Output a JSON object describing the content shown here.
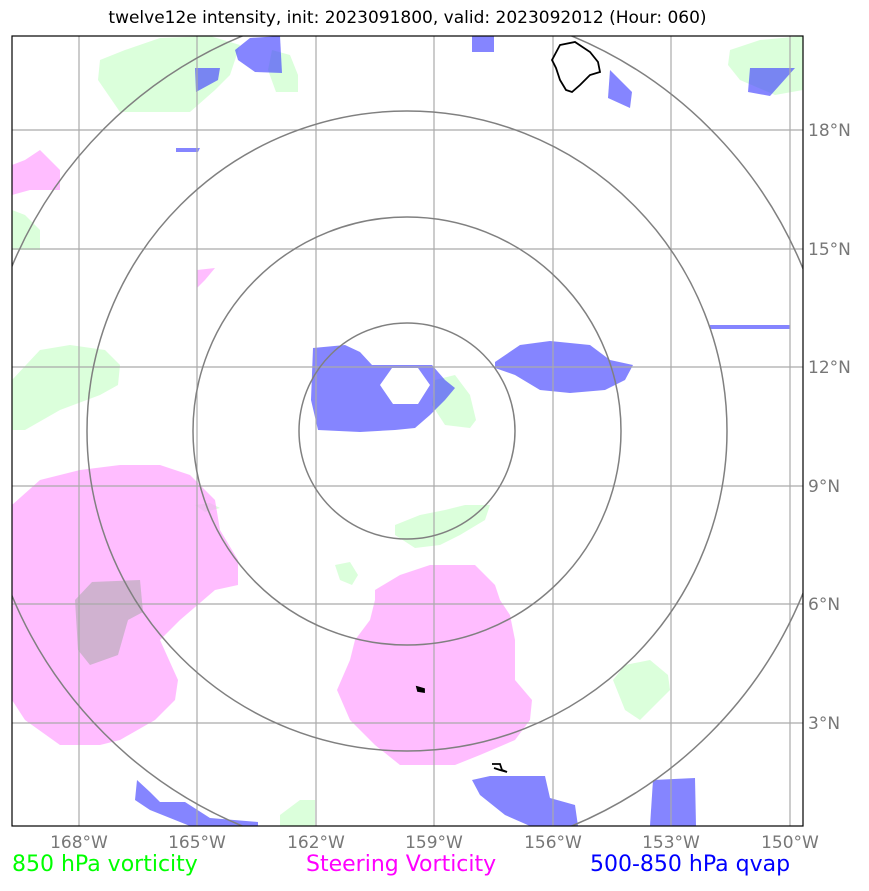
{
  "title": "twelve12e intensity, init: 2023091800, valid: 2023092012 (Hour: 060)",
  "lon_labels": [
    "168°W",
    "165°W",
    "162°W",
    "159°W",
    "156°W",
    "153°W",
    "150°W"
  ],
  "lat_labels": [
    "18°N",
    "15°N",
    "12°N",
    "9°N",
    "6°N",
    "3°N"
  ],
  "legend": {
    "vorticity_850": "850 hPa vorticity",
    "steering_vorticity": "Steering Vorticity",
    "qvap_500_850": "500-850 hPa qvap"
  },
  "colors": {
    "vorticity_850": "#00ff00",
    "steering_vorticity": "#ff00ff",
    "qvap_500_850": "#0000ff",
    "grid": "#aaaaaa",
    "range_rings": "#808080"
  }
}
